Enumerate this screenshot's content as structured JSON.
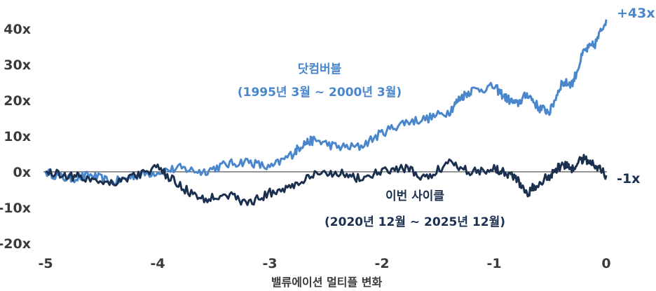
{
  "chart_data": {
    "type": "line",
    "xlabel": "밸류에이션 멀티플 변화",
    "ylabel": "",
    "xlim": [
      -5,
      0
    ],
    "ylim": [
      -20,
      43
    ],
    "x_ticks": [
      "-5",
      "-4",
      "-3",
      "-2",
      "-1",
      "0"
    ],
    "y_ticks": [
      "40x",
      "30x",
      "20x",
      "10x",
      "0x",
      "-10x",
      "-20x"
    ],
    "grid": false,
    "zero_line": true,
    "series": [
      {
        "name": "닷컴버블",
        "label_lines": [
          "닷컴버블",
          "(1995년 3월 ~ 2000년 3월)"
        ],
        "end_label": "+43x",
        "color": "#4a86cc",
        "x": [
          -5.0,
          -4.8,
          -4.6,
          -4.4,
          -4.2,
          -4.0,
          -3.8,
          -3.6,
          -3.4,
          -3.2,
          -3.0,
          -2.8,
          -2.7,
          -2.6,
          -2.4,
          -2.2,
          -2.0,
          -1.8,
          -1.6,
          -1.4,
          -1.3,
          -1.2,
          -1.0,
          -0.9,
          -0.8,
          -0.7,
          -0.6,
          -0.5,
          -0.4,
          -0.3,
          -0.2,
          -0.1,
          0.0
        ],
        "y": [
          0,
          -2,
          -1,
          -3,
          -1,
          0,
          1,
          0,
          2,
          3,
          1,
          5,
          8,
          9,
          7,
          7,
          11,
          14,
          15,
          17,
          21,
          23,
          24,
          21,
          19,
          22,
          18,
          17,
          25,
          25,
          34,
          36,
          43
        ]
      },
      {
        "name": "이번 사이클",
        "label_lines": [
          "이번 사이클",
          "(2020년 12월 ~ 2025년 12월)"
        ],
        "end_label": "-1x",
        "color": "#1b2f4f",
        "x": [
          -5.0,
          -4.8,
          -4.6,
          -4.4,
          -4.2,
          -4.0,
          -3.8,
          -3.6,
          -3.4,
          -3.2,
          -3.0,
          -2.8,
          -2.6,
          -2.4,
          -2.2,
          -2.0,
          -1.8,
          -1.6,
          -1.4,
          -1.2,
          -1.0,
          -0.9,
          -0.8,
          -0.7,
          -0.6,
          -0.5,
          -0.4,
          -0.3,
          -0.2,
          -0.1,
          0.0
        ],
        "y": [
          0,
          -1,
          -2,
          -3,
          -1,
          1,
          -4,
          -8,
          -6,
          -9,
          -6,
          -4,
          -1,
          0,
          -2,
          0,
          1,
          -2,
          3,
          0,
          1,
          0,
          -2,
          -6,
          -3,
          -1,
          2,
          1,
          4,
          2,
          -1
        ]
      }
    ]
  }
}
